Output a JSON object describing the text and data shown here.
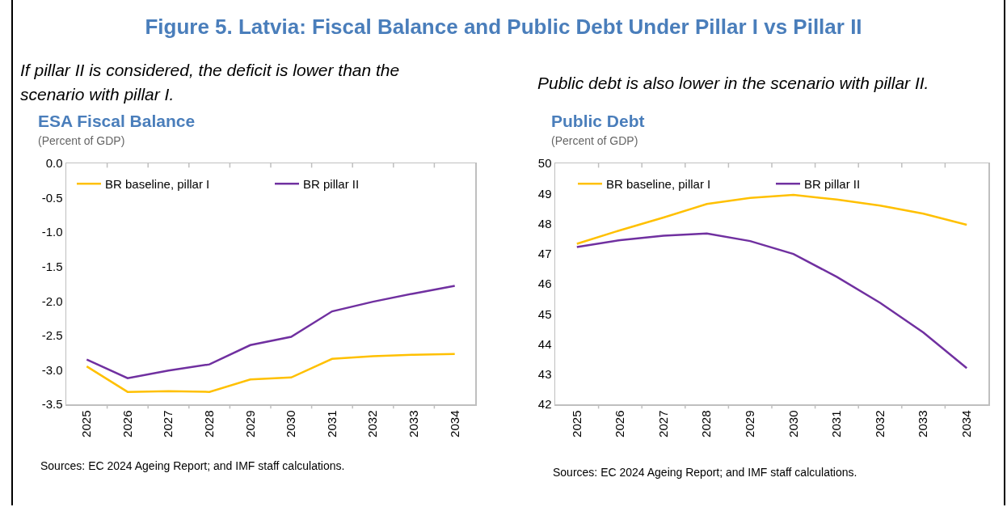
{
  "chart_data": [
    {
      "type": "line",
      "title": "ESA Fiscal Balance",
      "subtitle": "(Percent of GDP)",
      "annotations": [
        "Figure 5. Latvia: Fiscal Balance and Public Debt Under Pillar I vs Pillar II",
        "If pillar II is considered, the deficit is lower than the scenario with pillar I.",
        "Sources: EC 2024 Ageing Report; and IMF staff calculations."
      ],
      "categories": [
        "2025",
        "2026",
        "2027",
        "2028",
        "2029",
        "2030",
        "2031",
        "2032",
        "2033",
        "2034"
      ],
      "series": [
        {
          "name": "BR baseline, pillar I",
          "color": "#ffc000",
          "values": [
            -2.95,
            -3.32,
            -3.31,
            -3.32,
            -3.14,
            -3.11,
            -2.84,
            -2.8,
            -2.78,
            -2.77
          ]
        },
        {
          "name": "BR pillar II",
          "color": "#7030a0",
          "values": [
            -2.85,
            -3.12,
            -3.01,
            -2.92,
            -2.64,
            -2.52,
            -2.15,
            -2.01,
            -1.89,
            -1.78
          ]
        }
      ],
      "ylim": [
        -3.5,
        0
      ],
      "yticks": [
        {
          "value": -3.5,
          "label": "-3.5"
        },
        {
          "value": -3,
          "label": "-3.0"
        },
        {
          "value": -2.5,
          "label": "-2.5"
        },
        {
          "value": -2,
          "label": "-2.0"
        },
        {
          "value": -1.5,
          "label": "-1.5"
        },
        {
          "value": -1,
          "label": "-1.0"
        },
        {
          "value": -0.5,
          "label": "-0.5"
        },
        {
          "value": 0,
          "label": "0.0"
        }
      ],
      "grid": false,
      "legend": "top"
    },
    {
      "type": "line",
      "title": "Public Debt",
      "subtitle": "(Percent of GDP)",
      "annotations": [
        "Public debt is also lower in the scenario with pillar II.",
        "Sources: EC 2024 Ageing Report; and IMF staff calculations."
      ],
      "categories": [
        "2025",
        "2026",
        "2027",
        "2028",
        "2029",
        "2030",
        "2031",
        "2032",
        "2033",
        "2034"
      ],
      "series": [
        {
          "name": "BR baseline, pillar I",
          "color": "#ffc000",
          "values": [
            47.33,
            47.78,
            48.2,
            48.65,
            48.85,
            48.95,
            48.8,
            48.6,
            48.33,
            47.96
          ]
        },
        {
          "name": "BR pillar II",
          "color": "#7030a0",
          "values": [
            47.22,
            47.45,
            47.6,
            47.67,
            47.42,
            46.99,
            46.23,
            45.37,
            44.38,
            43.2
          ]
        }
      ],
      "ylim": [
        42,
        50
      ],
      "yticks": [
        42,
        43,
        44,
        45,
        46,
        47,
        48,
        49,
        50
      ],
      "grid": false,
      "legend": "top"
    }
  ]
}
